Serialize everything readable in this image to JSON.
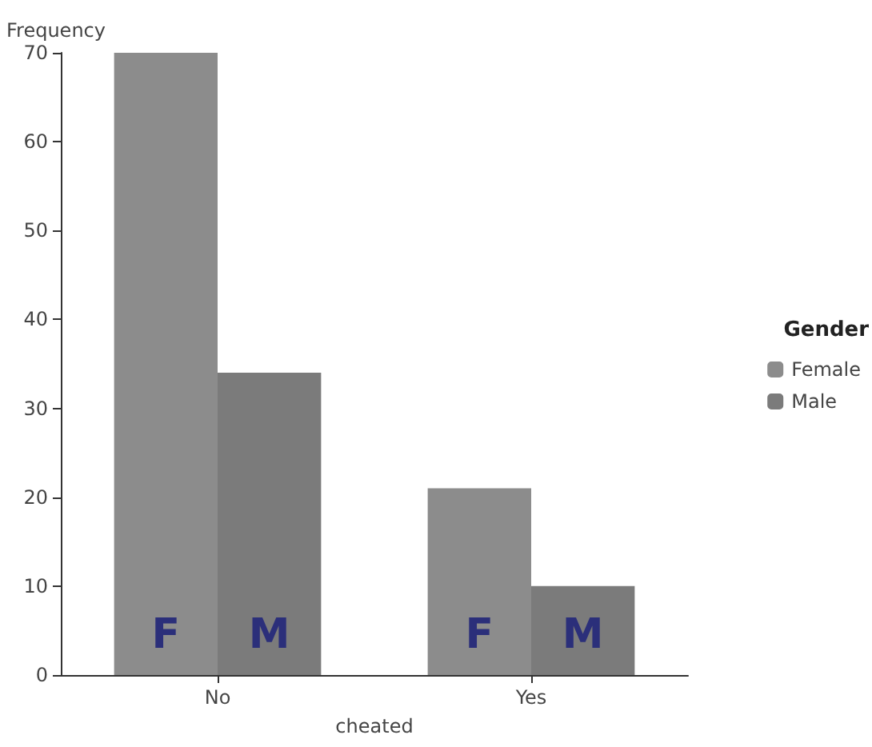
{
  "chart_data": {
    "type": "bar",
    "xlabel": "cheated",
    "ylabel": "Frequency",
    "legend_title": "Gender",
    "categories": [
      "No",
      "Yes"
    ],
    "series": [
      {
        "name": "Female",
        "color": "#8c8c8c",
        "values": [
          70,
          21
        ]
      },
      {
        "name": "Male",
        "color": "#7b7b7b",
        "values": [
          34,
          10
        ]
      }
    ],
    "annotations": [
      "F",
      "M",
      "F",
      "M"
    ],
    "ylim": [
      0,
      70
    ],
    "yticks": [
      0,
      10,
      20,
      30,
      40,
      50,
      60,
      70
    ],
    "grid": false,
    "legend": "right"
  }
}
